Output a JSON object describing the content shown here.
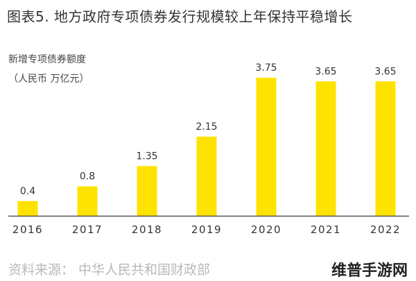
{
  "title": "图表5. 地方政府专项债券发行规模较上年保持平稳增长",
  "source": "资料来源：  中华人民共和国财政部",
  "watermark": "维普手游网",
  "colors": {
    "bar": "#FFE300",
    "axis": "#555555",
    "text": "#333333"
  },
  "chart_data": {
    "type": "bar",
    "ylabel_line1": "新增专项债券额度",
    "ylabel_line2": "（人民币 万亿元）",
    "categories": [
      "2016",
      "2017",
      "2018",
      "2019",
      "2020",
      "2021",
      "2022"
    ],
    "values": [
      0.4,
      0.8,
      1.35,
      2.15,
      3.75,
      3.65,
      3.65
    ],
    "data_labels": [
      "0.4",
      "0.8",
      "1.35",
      "2.15",
      "3.75",
      "3.65",
      "3.65"
    ],
    "ylim": [
      0,
      3.75
    ],
    "grid": false,
    "legend": "none"
  }
}
